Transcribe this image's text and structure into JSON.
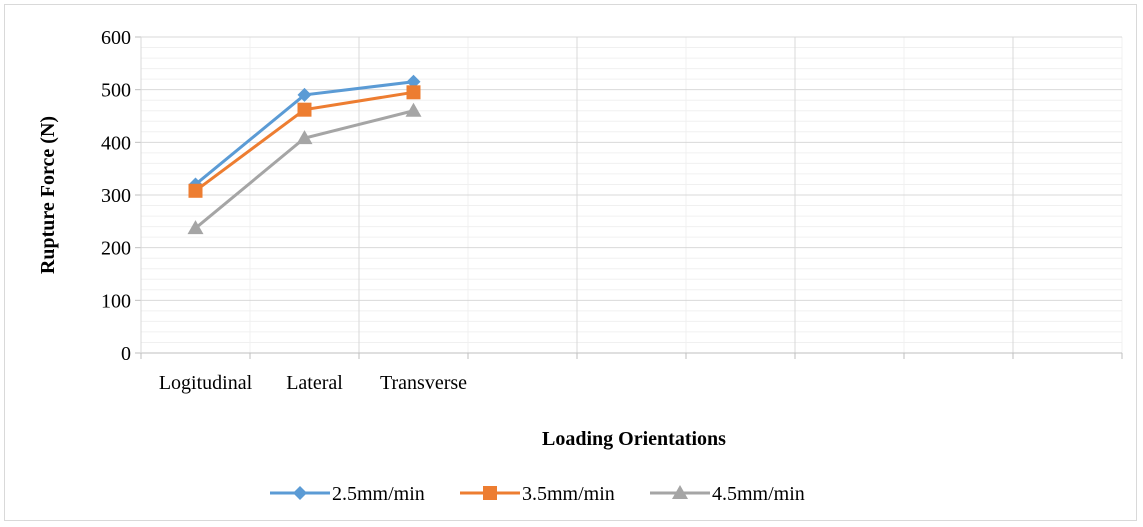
{
  "chart_data": {
    "type": "line",
    "title": "",
    "xlabel": "Loading Orientations",
    "ylabel": "Rupture Force (N)",
    "categories": [
      "Logitudinal",
      "Lateral",
      "Transverse"
    ],
    "empty_category_slots": 6,
    "ylim": [
      0,
      600
    ],
    "yticks": [
      0,
      100,
      200,
      300,
      400,
      500,
      600
    ],
    "grid": true,
    "legend_position": "bottom",
    "series": [
      {
        "name": "2.5mm/min",
        "values": [
          320,
          490,
          515
        ],
        "color": "#5B9BD5",
        "marker": "diamond"
      },
      {
        "name": "3.5mm/min",
        "values": [
          308,
          462,
          495
        ],
        "color": "#ED7D31",
        "marker": "square"
      },
      {
        "name": "4.5mm/min",
        "values": [
          237,
          408,
          460
        ],
        "color": "#A5A5A5",
        "marker": "triangle"
      }
    ]
  }
}
